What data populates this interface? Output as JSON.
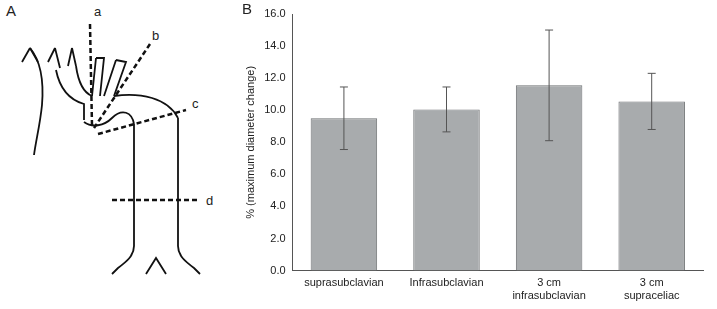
{
  "panel_labels": [
    "A",
    "B"
  ],
  "diagram": {
    "line_labels": [
      "a",
      "b",
      "c",
      "d"
    ]
  },
  "chart_data": {
    "type": "bar",
    "y_label": "% (maximum diameter change)",
    "categories": [
      "suprasubclavian",
      "Infrasubclavian",
      "3 cm infrasubclavian",
      "3 cm supraceliac"
    ],
    "values": [
      9.5,
      10.05,
      11.55,
      10.55
    ],
    "errors": [
      1.95,
      1.4,
      3.45,
      1.75
    ],
    "color": "#a8abad",
    "ylim": [
      0,
      16
    ],
    "yticks": [
      {
        "value": 0,
        "label": "0.0"
      },
      {
        "value": 2,
        "label": "2.0"
      },
      {
        "value": 4,
        "label": "4.0"
      },
      {
        "value": 6,
        "label": "6.0"
      },
      {
        "value": 8,
        "label": "8.0"
      },
      {
        "value": 10,
        "label": "10.0"
      },
      {
        "value": 12,
        "label": "12.0"
      },
      {
        "value": 14,
        "label": "14.0"
      },
      {
        "value": 16,
        "label": "16.0"
      }
    ],
    "grid": false
  }
}
